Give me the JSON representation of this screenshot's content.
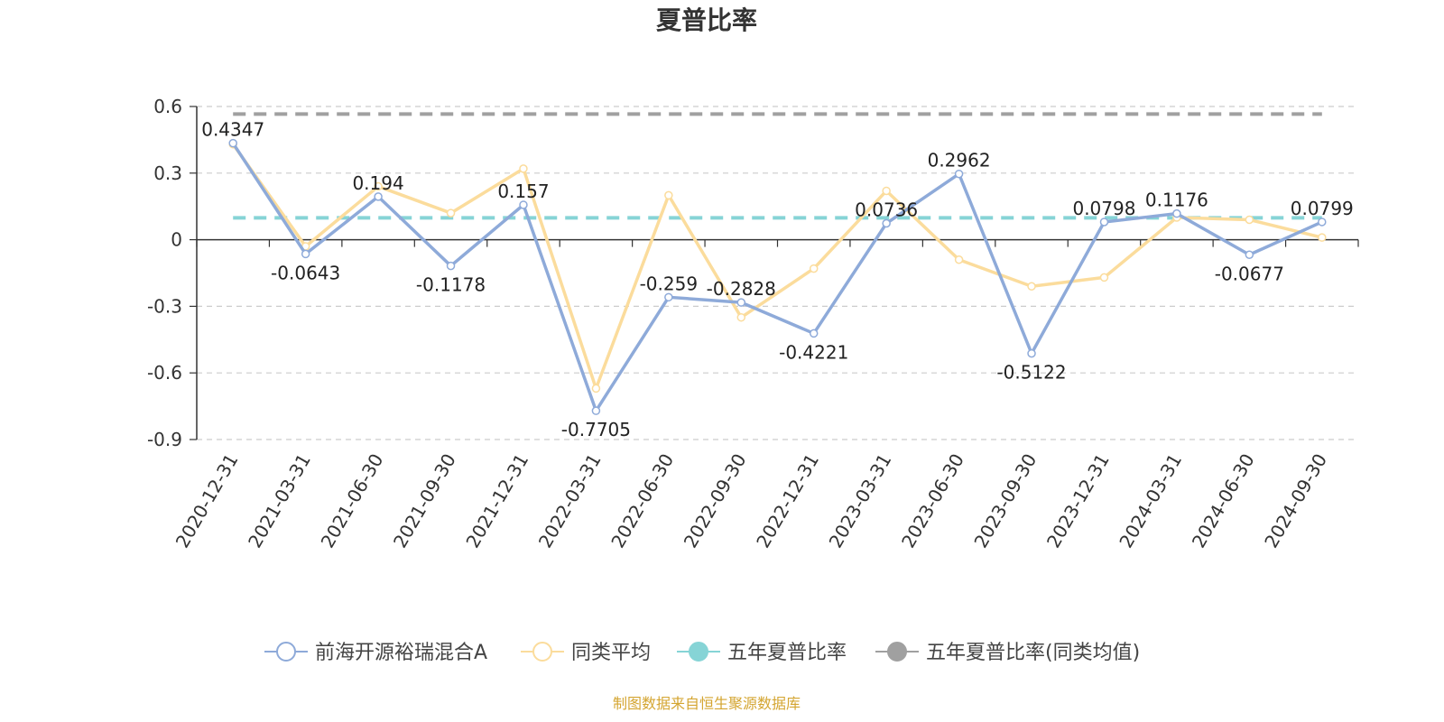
{
  "chart_data": {
    "type": "line",
    "title": "夏普比率",
    "xlabel": "",
    "ylabel": "",
    "categories": [
      "2020-12-31",
      "2021-03-31",
      "2021-06-30",
      "2021-09-30",
      "2021-12-31",
      "2022-03-31",
      "2022-06-30",
      "2022-09-30",
      "2022-12-31",
      "2023-03-31",
      "2023-06-30",
      "2023-09-30",
      "2023-12-31",
      "2024-03-31",
      "2024-06-30",
      "2024-09-30"
    ],
    "ylim": [
      -0.9,
      0.6
    ],
    "yticks": [
      0.6,
      0.3,
      0,
      -0.3,
      -0.6,
      -0.9
    ],
    "ytick_labels": [
      "0.6",
      "0.3",
      "0",
      "-0.3",
      "-0.6",
      "-0.9"
    ],
    "grid": true,
    "legend_position": "bottom-center",
    "series": [
      {
        "name": "前海开源裕瑞混合A",
        "color": "#8eaad9",
        "values": [
          0.4347,
          -0.0643,
          0.194,
          -0.1178,
          0.157,
          -0.7705,
          -0.259,
          -0.2828,
          -0.4221,
          0.0736,
          0.2962,
          -0.5122,
          0.0798,
          0.1176,
          -0.0677,
          0.0799
        ],
        "labels": [
          "0.4347",
          "-0.0643",
          "0.194",
          "-0.1178",
          "0.157",
          "-0.7705",
          "-0.259",
          "-0.2828",
          "-0.4221",
          "0.0736",
          "0.2962",
          "-0.5122",
          "0.0798",
          "0.1176",
          "-0.0677",
          "0.0799"
        ]
      },
      {
        "name": "同类平均",
        "color": "#fbdc9c",
        "values": [
          0.43,
          -0.03,
          0.24,
          0.12,
          0.32,
          -0.67,
          0.2,
          -0.35,
          -0.13,
          0.22,
          -0.09,
          -0.21,
          -0.17,
          0.1,
          0.09,
          0.01
        ]
      },
      {
        "name": "五年夏普比率",
        "color": "#86d4d6",
        "style": "dashed",
        "constant": 0.0985
      },
      {
        "name": "五年夏普比率(同类均值)",
        "color": "#a0a0a0",
        "style": "dashed",
        "constant": 0.566
      }
    ],
    "source": "制图数据来自恒生聚源数据库"
  }
}
